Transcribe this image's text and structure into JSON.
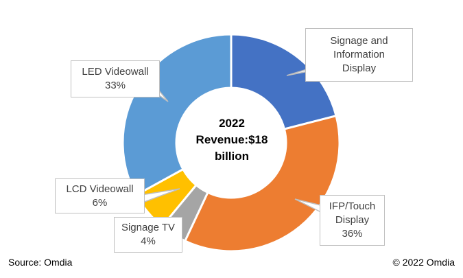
{
  "chart_data": {
    "type": "donut",
    "center_text": [
      "2022",
      "Revenue:$18",
      "billion"
    ],
    "slices": [
      {
        "name": "Signage and Information Display",
        "value": 21,
        "label_lines": [
          "Signage and",
          "Information",
          "Display"
        ],
        "color": "#4472C4"
      },
      {
        "name": "IFP/Touch Display",
        "value": 36,
        "label_lines": [
          "IFP/Touch",
          "Display",
          "36%"
        ],
        "color": "#ED7D31"
      },
      {
        "name": "Signage TV",
        "value": 4,
        "label_lines": [
          "Signage TV",
          "4%"
        ],
        "color": "#A5A5A5"
      },
      {
        "name": "LCD Videowall",
        "value": 6,
        "label_lines": [
          "LCD Videowall",
          "6%"
        ],
        "color": "#FFC000"
      },
      {
        "name": "LED Videowall",
        "value": 33,
        "label_lines": [
          "LED Videowall",
          "33%"
        ],
        "color": "#5B9BD5"
      }
    ],
    "unit": "%"
  },
  "footer": {
    "source": "Source: Omdia",
    "copyright": "© 2022 Omdia"
  }
}
